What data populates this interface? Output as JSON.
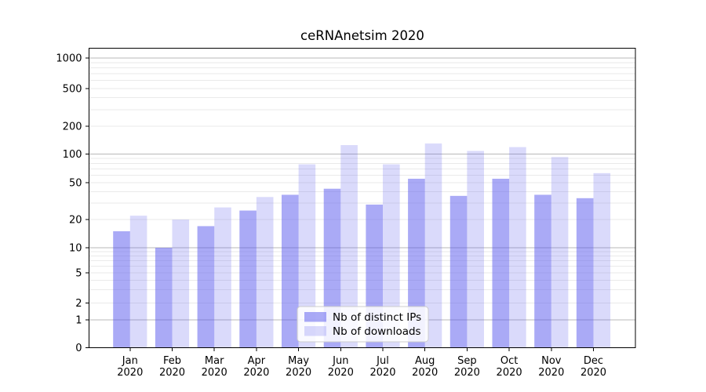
{
  "chart_data": {
    "type": "bar",
    "title": "ceRNAnetsim 2020",
    "categories": [
      "Jan",
      "Feb",
      "Mar",
      "Apr",
      "May",
      "Jun",
      "Jul",
      "Aug",
      "Sep",
      "Oct",
      "Nov",
      "Dec"
    ],
    "year_label": "2020",
    "series": [
      {
        "name": "Nb of distinct IPs",
        "values": [
          15,
          10,
          17,
          25,
          37,
          43,
          29,
          55,
          36,
          55,
          37,
          34
        ]
      },
      {
        "name": "Nb of downloads",
        "values": [
          22,
          20,
          27,
          35,
          78,
          125,
          78,
          130,
          108,
          119,
          93,
          63
        ]
      }
    ],
    "yscale": "symlog",
    "yticks": [
      0,
      1,
      2,
      5,
      10,
      20,
      50,
      100,
      200,
      500,
      1000
    ],
    "ylim": [
      0,
      1350
    ],
    "grid": true,
    "legend_position": "lower center"
  },
  "colors": {
    "bar_base": "#5555ee",
    "bar_distinct_ips": "rgba(85,85,238,0.5)",
    "bar_downloads": "rgba(85,85,238,0.22)",
    "major_grid": "#b9b9b9",
    "minor_grid": "#eaeaea",
    "spine": "#000000",
    "legend_border": "#cccccc",
    "legend_fill": "rgba(255,255,255,0.85)",
    "background": "#ffffff"
  }
}
